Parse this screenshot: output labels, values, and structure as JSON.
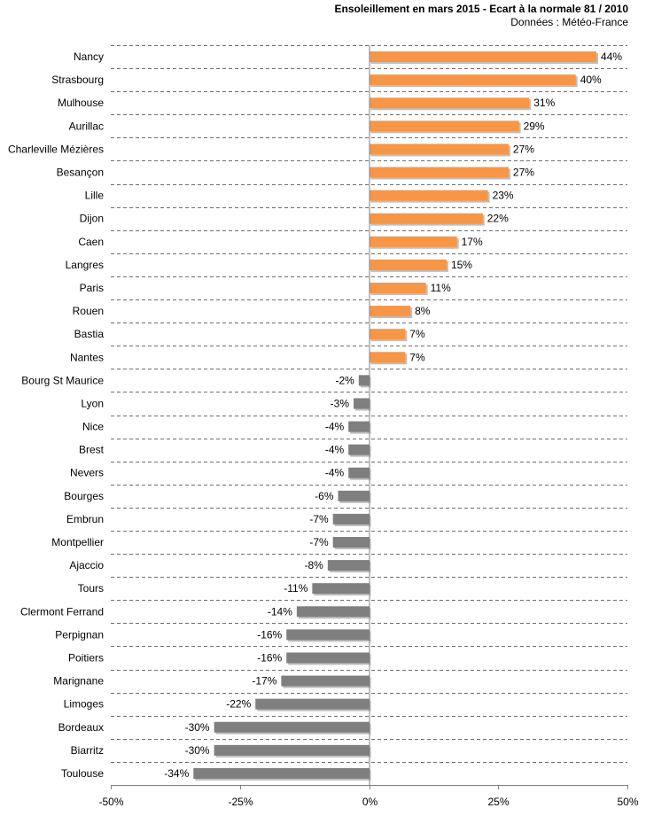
{
  "chart_data": {
    "type": "bar",
    "orientation": "horizontal",
    "title": "Ensoleillement en mars 2015 - Ecart à la normale 81 / 2010",
    "subtitle": "Données : Météo-France",
    "xlim": [
      -50,
      50
    ],
    "xticks": [
      -50,
      -25,
      0,
      25,
      50
    ],
    "xtick_labels": [
      "-50%",
      "-25%",
      "0%",
      "25%",
      "50%"
    ],
    "grid": "horizontal dashed",
    "positive_color": "#f79646",
    "negative_color": "#7f7f7f",
    "categories": [
      "Nancy",
      "Strasbourg",
      "Mulhouse",
      "Aurillac",
      "Charleville Mézières",
      "Besançon",
      "Lille",
      "Dijon",
      "Caen",
      "Langres",
      "Paris",
      "Rouen",
      "Bastia",
      "Nantes",
      "Bourg St Maurice",
      "Lyon",
      "Nice",
      "Brest",
      "Nevers",
      "Bourges",
      "Embrun",
      "Montpellier",
      "Ajaccio",
      "Tours",
      "Clermont Ferrand",
      "Perpignan",
      "Poitiers",
      "Marignane",
      "Limoges",
      "Bordeaux",
      "Biarritz",
      "Toulouse"
    ],
    "values": [
      44,
      40,
      31,
      29,
      27,
      27,
      23,
      22,
      17,
      15,
      11,
      8,
      7,
      7,
      -2,
      -3,
      -4,
      -4,
      -4,
      -6,
      -7,
      -7,
      -8,
      -11,
      -14,
      -16,
      -16,
      -17,
      -22,
      -30,
      -30,
      -34
    ],
    "value_labels": [
      "44%",
      "40%",
      "31%",
      "29%",
      "27%",
      "27%",
      "23%",
      "22%",
      "17%",
      "15%",
      "11%",
      "8%",
      "7%",
      "7%",
      "-2%",
      "-3%",
      "-4%",
      "-4%",
      "-4%",
      "-6%",
      "-7%",
      "-7%",
      "-8%",
      "-11%",
      "-14%",
      "-16%",
      "-16%",
      "-17%",
      "-22%",
      "-30%",
      "-30%",
      "-34%"
    ]
  }
}
